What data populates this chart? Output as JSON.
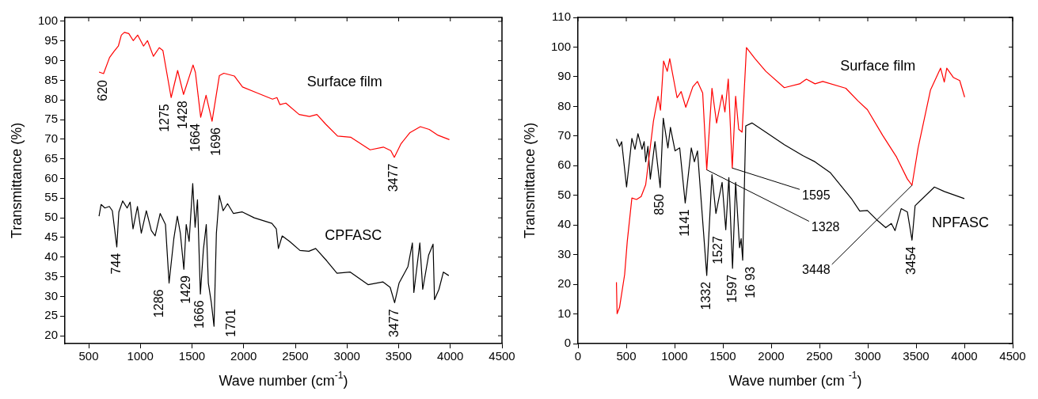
{
  "chart_data": [
    {
      "type": "line",
      "xlabel": "Wave number (cm$^{-1}$)",
      "ylabel": "Transmittance (%)",
      "xlim": [
        270,
        4500
      ],
      "xticks": [
        500,
        1000,
        1500,
        2000,
        2500,
        3000,
        3500,
        4000,
        4500
      ],
      "ylim": [
        18,
        101
      ],
      "yticks": [
        20,
        25,
        30,
        35,
        40,
        45,
        50,
        55,
        60,
        65,
        70,
        75,
        80,
        85,
        90,
        95,
        100
      ],
      "series": [
        {
          "name": "Surface film",
          "color": "#ff0000",
          "x": [
            600,
            644,
            702,
            744,
            787,
            816,
            845,
            888,
            931,
            974,
            1031,
            1069,
            1126,
            1183,
            1218,
            1298,
            1361,
            1418,
            1510,
            1533,
            1584,
            1636,
            1694,
            1765,
            1808,
            1909,
            1989,
            2109,
            2279,
            2322,
            2351,
            2408,
            2537,
            2637,
            2709,
            2795,
            2909,
            3038,
            3224,
            3352,
            3424,
            3458,
            3524,
            3610,
            3710,
            3796,
            3882,
            3991
          ],
          "values": [
            87.1,
            86.7,
            90.8,
            92.3,
            93.7,
            96.5,
            97.2,
            96.9,
            95.1,
            96.5,
            93.7,
            95.1,
            91.1,
            93.3,
            92.6,
            80.6,
            87.5,
            81.4,
            88.9,
            87.0,
            75.6,
            81.2,
            74.6,
            86.2,
            86.8,
            86.1,
            83.3,
            82.0,
            80.2,
            80.6,
            78.8,
            79.2,
            76.3,
            75.8,
            76.3,
            73.8,
            70.8,
            70.5,
            67.3,
            68.0,
            67.1,
            65.4,
            68.9,
            71.7,
            73.2,
            72.5,
            71.0,
            69.9
          ]
        },
        {
          "name": "CPFASC",
          "color": "#000000",
          "x": [
            600,
            620,
            657,
            700,
            729,
            772,
            792,
            829,
            872,
            901,
            929,
            972,
            1009,
            1058,
            1106,
            1143,
            1192,
            1243,
            1278,
            1324,
            1358,
            1387,
            1421,
            1444,
            1472,
            1507,
            1530,
            1553,
            1581,
            1610,
            1638,
            1658,
            1687,
            1713,
            1736,
            1764,
            1801,
            1844,
            1901,
            1987,
            2102,
            2273,
            2316,
            2336,
            2373,
            2445,
            2545,
            2631,
            2697,
            2803,
            2903,
            3032,
            3204,
            3347,
            3418,
            3461,
            3504,
            3590,
            3633,
            3647,
            3705,
            3733,
            3790,
            3833,
            3847,
            3890,
            3933,
            3985
          ],
          "values": [
            50.4,
            53.4,
            52.5,
            52.9,
            51.8,
            42.6,
            51.5,
            54.3,
            52.5,
            54.0,
            47.2,
            52.9,
            46.1,
            51.8,
            46.8,
            45.4,
            51.1,
            48.3,
            33.4,
            44.7,
            50.4,
            46.1,
            36.9,
            48.3,
            44.0,
            58.7,
            47.6,
            54.6,
            30.6,
            41.9,
            48.3,
            33.4,
            28.4,
            22.4,
            46.1,
            55.7,
            51.8,
            53.6,
            51.1,
            51.5,
            50.0,
            48.6,
            47.2,
            42.2,
            45.4,
            44.0,
            41.7,
            41.5,
            42.2,
            39.1,
            35.9,
            36.2,
            33.0,
            33.7,
            32.3,
            28.4,
            33.4,
            37.6,
            43.6,
            31.0,
            43.6,
            31.8,
            40.5,
            43.3,
            29.2,
            31.8,
            36.2,
            35.3
          ]
        }
      ],
      "annotations": [
        {
          "text": "620",
          "x": 644,
          "y": 86.7
        },
        {
          "text": "1275",
          "x": 1298,
          "y": 80.6
        },
        {
          "text": "1428",
          "x": 1418,
          "y": 81.4
        },
        {
          "text": "1664",
          "x": 1584,
          "y": 75.6
        },
        {
          "text": "1696",
          "x": 1694,
          "y": 74.6
        },
        {
          "text": "3477",
          "x": 3458,
          "y": 65.4
        },
        {
          "text": "744",
          "x": 772,
          "y": 42.6
        },
        {
          "text": "1286",
          "x": 1278,
          "y": 33.4
        },
        {
          "text": "1429",
          "x": 1421,
          "y": 36.9
        },
        {
          "text": "1666",
          "x": 1581,
          "y": 30.6
        },
        {
          "text": "1701",
          "x": 1713,
          "y": 22.4
        },
        {
          "text": "3477",
          "x": 3461,
          "y": 28.4
        }
      ]
    },
    {
      "type": "line",
      "xlabel": "Wave number (cm $^{-1}$)",
      "ylabel": "Transmittance (%)",
      "xlim": [
        0,
        4500
      ],
      "xticks": [
        0,
        500,
        1000,
        1500,
        2000,
        2500,
        3000,
        3500,
        4000,
        4500
      ],
      "ylim": [
        0,
        110
      ],
      "yticks": [
        0,
        10,
        20,
        30,
        40,
        50,
        60,
        70,
        80,
        90,
        100,
        110
      ],
      "series": [
        {
          "name": "Surface film",
          "color": "#ff0000",
          "x": [
            398,
            405,
            430,
            483,
            510,
            558,
            606,
            654,
            701,
            781,
            829,
            854,
            886,
            924,
            950,
            1026,
            1068,
            1116,
            1189,
            1237,
            1291,
            1333,
            1387,
            1435,
            1492,
            1521,
            1556,
            1597,
            1632,
            1664,
            1699,
            1744,
            1833,
            1945,
            2136,
            2295,
            2365,
            2454,
            2534,
            2773,
            2900,
            2996,
            3155,
            3298,
            3410,
            3458,
            3521,
            3649,
            3754,
            3792,
            3818,
            3888,
            3952,
            4003
          ],
          "values": [
            20.7,
            10.1,
            12.2,
            23.3,
            34.4,
            49.1,
            48.6,
            49.6,
            53.6,
            75.0,
            83.4,
            78.7,
            95.3,
            91.8,
            96.1,
            82.9,
            85.0,
            79.7,
            86.6,
            88.4,
            84.5,
            58.6,
            86.1,
            74.4,
            83.9,
            78.1,
            89.2,
            59.2,
            83.4,
            72.3,
            71.3,
            99.8,
            96.1,
            91.8,
            86.3,
            87.6,
            89.2,
            87.6,
            88.4,
            86.1,
            81.8,
            78.9,
            70.2,
            62.9,
            55.5,
            53.4,
            66.0,
            85.5,
            92.9,
            88.2,
            92.9,
            89.7,
            88.7,
            83.1
          ]
        },
        {
          "name": "NPFASC",
          "color": "#000000",
          "x": [
            398,
            430,
            452,
            503,
            558,
            590,
            621,
            663,
            685,
            701,
            724,
            749,
            797,
            851,
            883,
            931,
            957,
            1005,
            1053,
            1110,
            1173,
            1205,
            1237,
            1333,
            1387,
            1428,
            1492,
            1530,
            1562,
            1600,
            1632,
            1673,
            1689,
            1705,
            1737,
            1801,
            1945,
            2136,
            2327,
            2454,
            2614,
            2837,
            2917,
            2996,
            3091,
            3186,
            3244,
            3282,
            3346,
            3410,
            3458,
            3490,
            3690,
            3792,
            4000
          ],
          "values": [
            69.0,
            66.5,
            68.1,
            52.8,
            69.2,
            65.5,
            70.8,
            65.5,
            68.1,
            61.3,
            66.5,
            55.5,
            68.1,
            52.6,
            76.0,
            66.0,
            72.9,
            65.0,
            66.0,
            47.4,
            66.0,
            61.3,
            65.0,
            23.0,
            57.0,
            43.9,
            54.4,
            38.4,
            56.0,
            25.4,
            54.4,
            32.3,
            35.4,
            28.1,
            73.4,
            74.4,
            71.3,
            67.1,
            63.4,
            61.3,
            57.6,
            48.6,
            44.7,
            44.9,
            41.8,
            39.1,
            40.5,
            38.1,
            45.5,
            44.4,
            34.9,
            46.5,
            52.8,
            51.3,
            48.9
          ]
        }
      ],
      "annotations": [
        {
          "text": "850",
          "x": 851,
          "y": 52.6
        },
        {
          "text": "1141",
          "x": 1110,
          "y": 47.4
        },
        {
          "text": "1332",
          "x": 1333,
          "y": 23.0
        },
        {
          "text": "1527",
          "x": 1530,
          "y": 38.4
        },
        {
          "text": "1597",
          "x": 1600,
          "y": 25.4
        },
        {
          "text": "16 93",
          "x": 1705,
          "y": 28.1
        },
        {
          "text": "3454",
          "x": 3458,
          "y": 34.9
        },
        {
          "text": "1595",
          "x": 1597,
          "y": 59.2
        },
        {
          "text": "1328",
          "x": 1333,
          "y": 58.6
        },
        {
          "text": "3448",
          "x": 3458,
          "y": 53.4
        }
      ]
    }
  ]
}
